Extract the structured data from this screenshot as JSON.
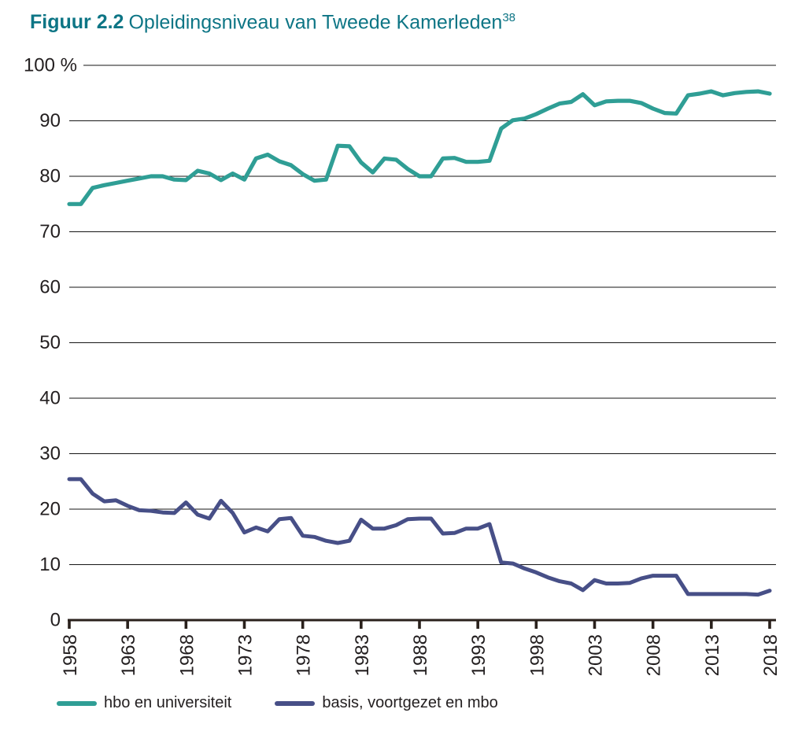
{
  "figure": {
    "label": "Figuur 2.2",
    "title": "Opleidingsniveau van Tweede Kamerleden",
    "footnote_marker": "38"
  },
  "colors": {
    "title_text": "#0D7585",
    "axis_text": "#231F20",
    "gridline": "#161616",
    "axis_line": "#2A211C",
    "background": "#FFFFFF"
  },
  "legend": {
    "items": [
      {
        "label": "hbo en universiteit",
        "color": "#2F9E95"
      },
      {
        "label": "basis, voortgezet en mbo",
        "color": "#474F87"
      }
    ]
  },
  "chart_data": {
    "type": "line",
    "title": "Opleidingsniveau van Tweede Kamerleden",
    "xlabel": "",
    "ylabel": "%",
    "ylim": [
      0,
      100
    ],
    "ytick_step": 10,
    "ytick_labels": [
      "0",
      "10",
      "20",
      "30",
      "40",
      "50",
      "60",
      "70",
      "80",
      "90",
      "100 %"
    ],
    "xticks": [
      1958,
      1963,
      1968,
      1973,
      1978,
      1983,
      1988,
      1993,
      1998,
      2003,
      2008,
      2013,
      2018
    ],
    "grid": "horizontal",
    "legend_position": "bottom",
    "x": [
      1958,
      1959,
      1960,
      1961,
      1962,
      1963,
      1964,
      1965,
      1966,
      1967,
      1968,
      1969,
      1970,
      1971,
      1972,
      1973,
      1974,
      1975,
      1976,
      1977,
      1978,
      1979,
      1980,
      1981,
      1982,
      1983,
      1984,
      1985,
      1986,
      1987,
      1988,
      1989,
      1990,
      1991,
      1992,
      1993,
      1994,
      1995,
      1996,
      1997,
      1998,
      1999,
      2000,
      2001,
      2002,
      2003,
      2004,
      2005,
      2006,
      2007,
      2008,
      2009,
      2010,
      2011,
      2012,
      2013,
      2014,
      2015,
      2016,
      2017,
      2018
    ],
    "series": [
      {
        "name": "hbo en universiteit",
        "color": "#2F9E95",
        "values": [
          75.0,
          75.0,
          77.9,
          78.4,
          78.8,
          79.2,
          79.6,
          80.0,
          80.0,
          79.4,
          79.3,
          81.0,
          80.5,
          79.3,
          80.5,
          79.4,
          83.2,
          83.9,
          82.7,
          82.0,
          80.4,
          79.2,
          79.4,
          85.5,
          85.4,
          82.5,
          80.7,
          83.2,
          83.0,
          81.3,
          80.0,
          80.0,
          83.2,
          83.3,
          82.6,
          82.6,
          82.8,
          88.6,
          90.1,
          90.4,
          91.2,
          92.2,
          93.1,
          93.4,
          94.8,
          92.8,
          93.5,
          93.6,
          93.6,
          93.2,
          92.2,
          91.4,
          91.3,
          94.6,
          94.9,
          95.3,
          94.6,
          95.0,
          95.2,
          95.3,
          94.9
        ]
      },
      {
        "name": "basis, voortgezet en mbo",
        "color": "#474F87",
        "values": [
          25.4,
          25.4,
          22.8,
          21.4,
          21.6,
          20.6,
          19.8,
          19.7,
          19.4,
          19.3,
          21.2,
          19.0,
          18.3,
          21.5,
          19.3,
          15.8,
          16.7,
          16.0,
          18.2,
          18.4,
          15.2,
          15.0,
          14.3,
          13.9,
          14.3,
          18.1,
          16.5,
          16.5,
          17.1,
          18.2,
          18.3,
          18.3,
          15.6,
          15.7,
          16.5,
          16.5,
          17.3,
          10.4,
          10.2,
          9.3,
          8.6,
          7.7,
          7.0,
          6.6,
          5.4,
          7.2,
          6.6,
          6.6,
          6.7,
          7.5,
          8.0,
          8.0,
          8.0,
          4.7,
          4.7,
          4.7,
          4.7,
          4.7,
          4.7,
          4.6,
          5.3
        ]
      }
    ]
  }
}
